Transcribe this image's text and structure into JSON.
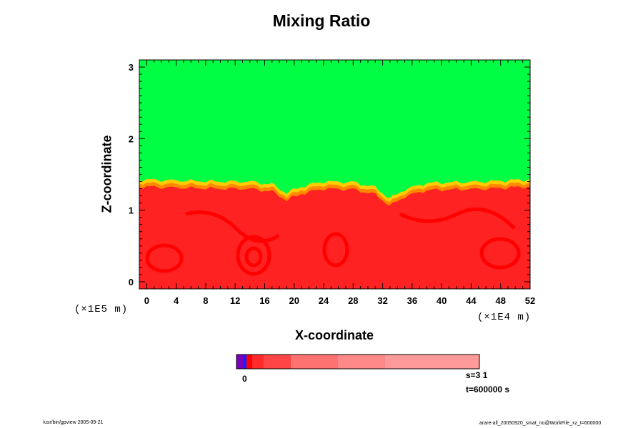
{
  "chart_data": {
    "type": "heatmap",
    "title": "Mixing Ratio",
    "xlabel": "X-coordinate",
    "ylabel": "Z-coordinate",
    "x_scale_label": "(×1E4 m)",
    "y_scale_label": "(×1E5 m)",
    "x_ticks": [
      "0",
      "4",
      "8",
      "12",
      "16",
      "20",
      "24",
      "28",
      "32",
      "36",
      "40",
      "44",
      "48",
      "52"
    ],
    "y_ticks": [
      "0",
      "1",
      "2",
      "3"
    ],
    "xlim": [
      -1,
      52
    ],
    "ylim": [
      -0.1,
      3.1
    ],
    "regions": [
      {
        "name": "upper",
        "color": "#00ff44",
        "z_min": 1.4,
        "z_max": 3.1
      },
      {
        "name": "interface",
        "color": "#ffcc00",
        "z_min": 1.2,
        "z_max": 1.45
      },
      {
        "name": "lower",
        "color": "#ff2222",
        "z_min": -0.1,
        "z_max": 1.3
      }
    ],
    "interface_profile": {
      "x": [
        -1,
        2,
        6,
        10,
        14,
        17,
        19,
        21,
        24,
        28,
        31,
        33,
        35,
        38,
        42,
        46,
        50,
        52
      ],
      "z": [
        1.4,
        1.39,
        1.38,
        1.37,
        1.37,
        1.33,
        1.21,
        1.3,
        1.37,
        1.36,
        1.29,
        1.13,
        1.26,
        1.35,
        1.36,
        1.37,
        1.39,
        1.4
      ]
    },
    "colorbar": {
      "colors": [
        "#7b00bb",
        "#1a1aff",
        "#ff0000",
        "#ff2b2b",
        "#ff4545",
        "#ff7272",
        "#ff8888",
        "#ff9a9a"
      ],
      "widths": [
        10,
        4,
        8,
        16,
        38,
        66,
        66,
        132
      ],
      "label": "0"
    },
    "s_info": "s=3 1",
    "t_info": "t=600000 s"
  },
  "footer": {
    "left": "/usr/bin/gpview 2005-09-21",
    "right": "arare-all_20050920_smat_no@WorkFile_xz_t=600000"
  }
}
